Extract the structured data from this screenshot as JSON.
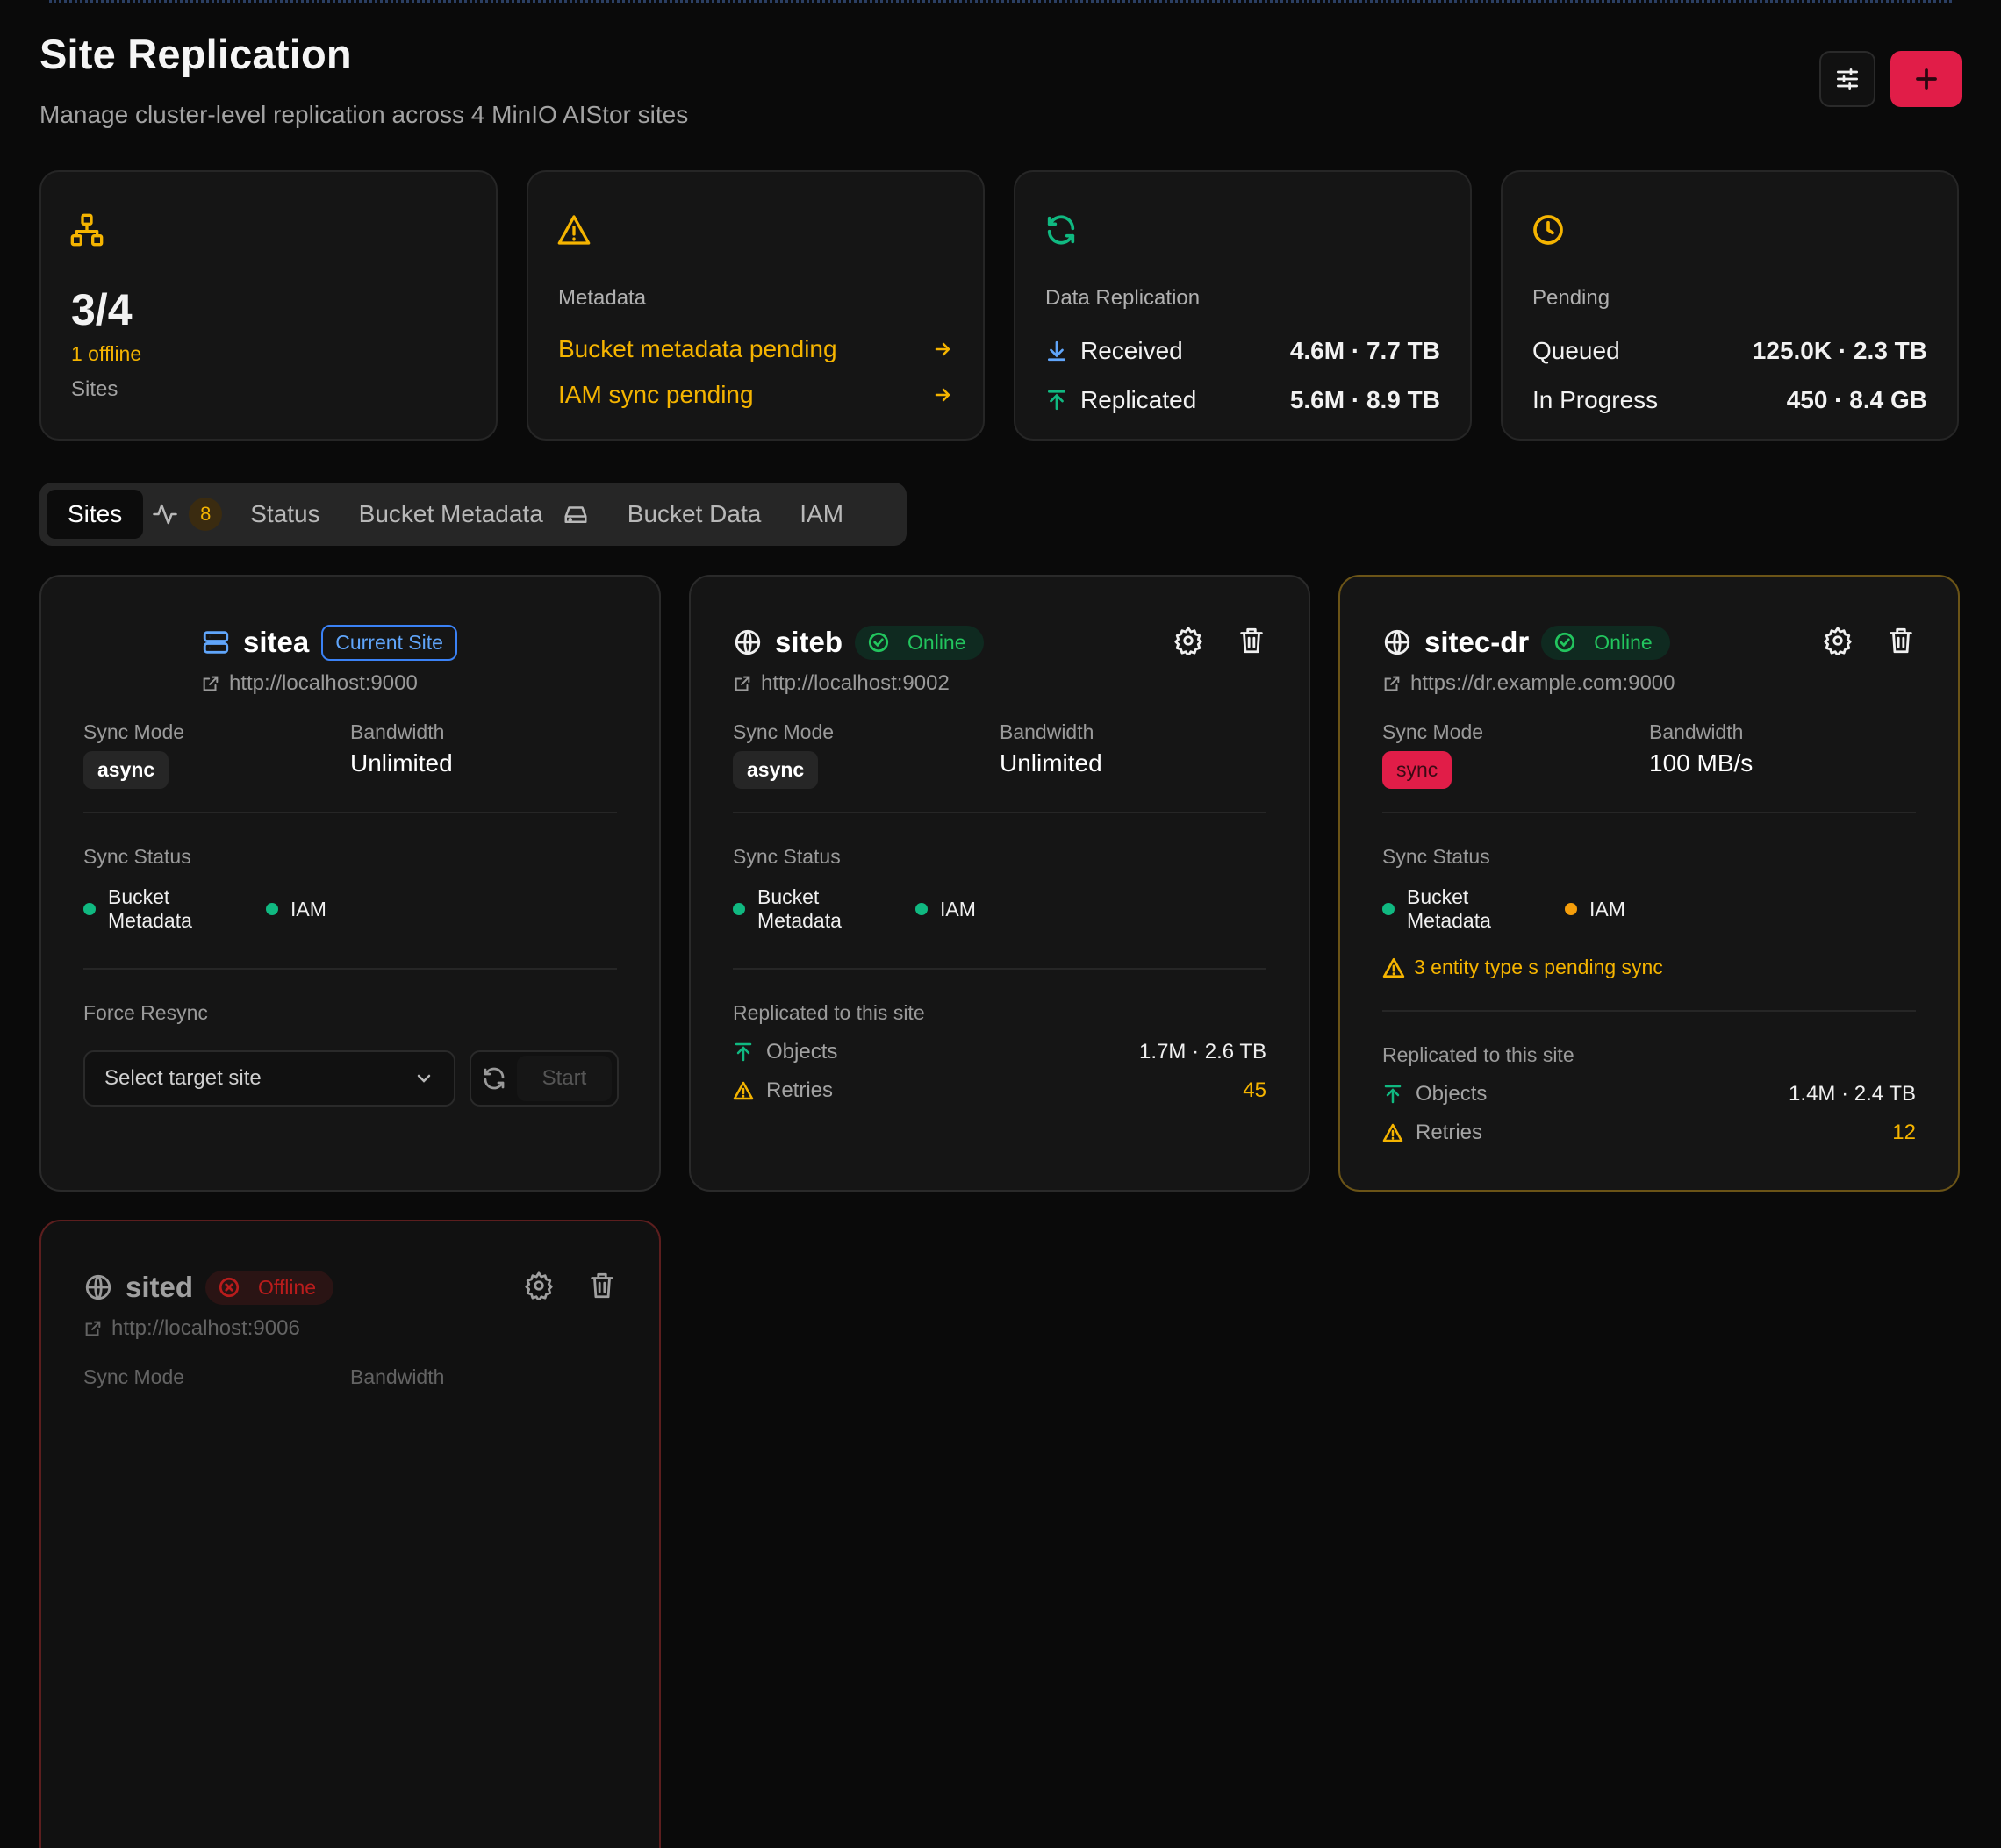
{
  "header": {
    "title": "Site Replication",
    "subtitle": "Manage cluster-level replication across 4 MinIO AIStor sites",
    "filter_icon": "sliders-icon",
    "add_icon": "plus-icon"
  },
  "stats": {
    "sites": {
      "value": "3/4",
      "offline": "1 offline",
      "label": "Sites"
    },
    "metadata": {
      "caption": "Metadata",
      "items": [
        "Bucket metadata pending",
        "IAM sync pending"
      ]
    },
    "data_replication": {
      "caption": "Data Replication",
      "rows": [
        {
          "label": "Received",
          "value": "4.6M · 7.7 TB"
        },
        {
          "label": "Replicated",
          "value": "5.6M · 8.9 TB"
        }
      ]
    },
    "pending": {
      "caption": "Pending",
      "rows": [
        {
          "label": "Queued",
          "value": "125.0K · 2.3 TB"
        },
        {
          "label": "In Progress",
          "value": "450 · 8.4 GB"
        }
      ]
    }
  },
  "tabs": {
    "sites": "Sites",
    "badge": "8",
    "status": "Status",
    "bucket_metadata": "Bucket Metadata",
    "bucket_data": "Bucket Data",
    "iam": "IAM"
  },
  "labels": {
    "sync_mode": "Sync Mode",
    "bandwidth": "Bandwidth",
    "sync_status": "Sync Status",
    "bucket_metadata_line1": "Bucket",
    "bucket_metadata_line2": "Metadata",
    "iam": "IAM",
    "replicated_to": "Replicated to this site",
    "objects": "Objects",
    "retries": "Retries",
    "force_resync": "Force Resync"
  },
  "sites": [
    {
      "name": "sitea",
      "badge": "Current Site",
      "url": "http://localhost:9000",
      "sync_mode": "async",
      "bandwidth": "Unlimited",
      "resync": {
        "placeholder": "Select target site",
        "start": "Start"
      }
    },
    {
      "name": "siteb",
      "status": "Online",
      "url": "http://localhost:9002",
      "sync_mode": "async",
      "bandwidth": "Unlimited",
      "objects": "1.7M · 2.6 TB",
      "retries": "45"
    },
    {
      "name": "sitec-dr",
      "status": "Online",
      "url": "https://dr.example.com:9000",
      "sync_mode": "sync",
      "bandwidth": "100 MB/s",
      "warning": "3 entity type s pending sync",
      "objects": "1.4M · 2.4 TB",
      "retries": "12"
    },
    {
      "name": "sited",
      "status": "Offline",
      "url": "http://localhost:9006"
    }
  ],
  "colors": {
    "accent": "#e11d48",
    "amber": "#f5b400",
    "green": "#10b981",
    "blue": "#60a5fa",
    "red": "#b91c1c"
  }
}
